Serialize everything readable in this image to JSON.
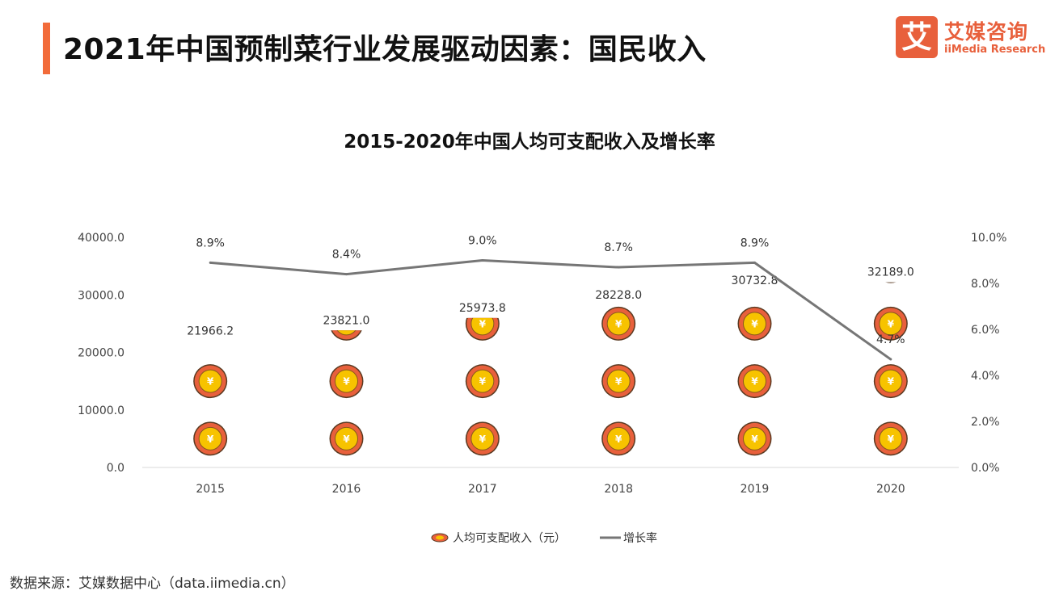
{
  "header": {
    "title": "2021年中国预制菜行业发展驱动因素：国民收入"
  },
  "logo": {
    "mark": "艾",
    "name_cn": "艾媒咨询",
    "name_en": "iiMedia Research"
  },
  "footer": {
    "source": "数据来源：艾媒数据中心（data.iimedia.cn）"
  },
  "colors": {
    "accent": "#f26b3a",
    "coin_outer": "#e8603c",
    "coin_inner": "#f7c300",
    "line": "#767676"
  },
  "chart_data": {
    "type": "bar",
    "title": "2015-2020年中国人均可支配收入及增长率",
    "categories": [
      "2015",
      "2016",
      "2017",
      "2018",
      "2019",
      "2020"
    ],
    "series": [
      {
        "name": "人均可支配收入（元）",
        "type": "pictorial-bar",
        "axis": "left",
        "icon": "yuan-coin-icon",
        "values": [
          21966.2,
          23821.0,
          25973.8,
          28228.0,
          30732.8,
          32189.0
        ],
        "labels": [
          "21966.2",
          "23821.0",
          "25973.8",
          "28228.0",
          "30732.8",
          "32189.0"
        ]
      },
      {
        "name": "增长率",
        "type": "line",
        "axis": "right",
        "values": [
          8.9,
          8.4,
          9.0,
          8.7,
          8.9,
          4.7
        ],
        "labels": [
          "8.9%",
          "8.4%",
          "9.0%",
          "8.7%",
          "8.9%",
          "4.7%"
        ]
      }
    ],
    "y_left": {
      "min": 0,
      "max": 40000,
      "ticks": [
        "0.0",
        "10000.0",
        "20000.0",
        "30000.0",
        "40000.0"
      ]
    },
    "y_right": {
      "min": 0,
      "max": 10,
      "ticks": [
        "0.0%",
        "2.0%",
        "4.0%",
        "6.0%",
        "8.0%",
        "10.0%"
      ]
    },
    "grid": false,
    "legend_position": "bottom"
  }
}
